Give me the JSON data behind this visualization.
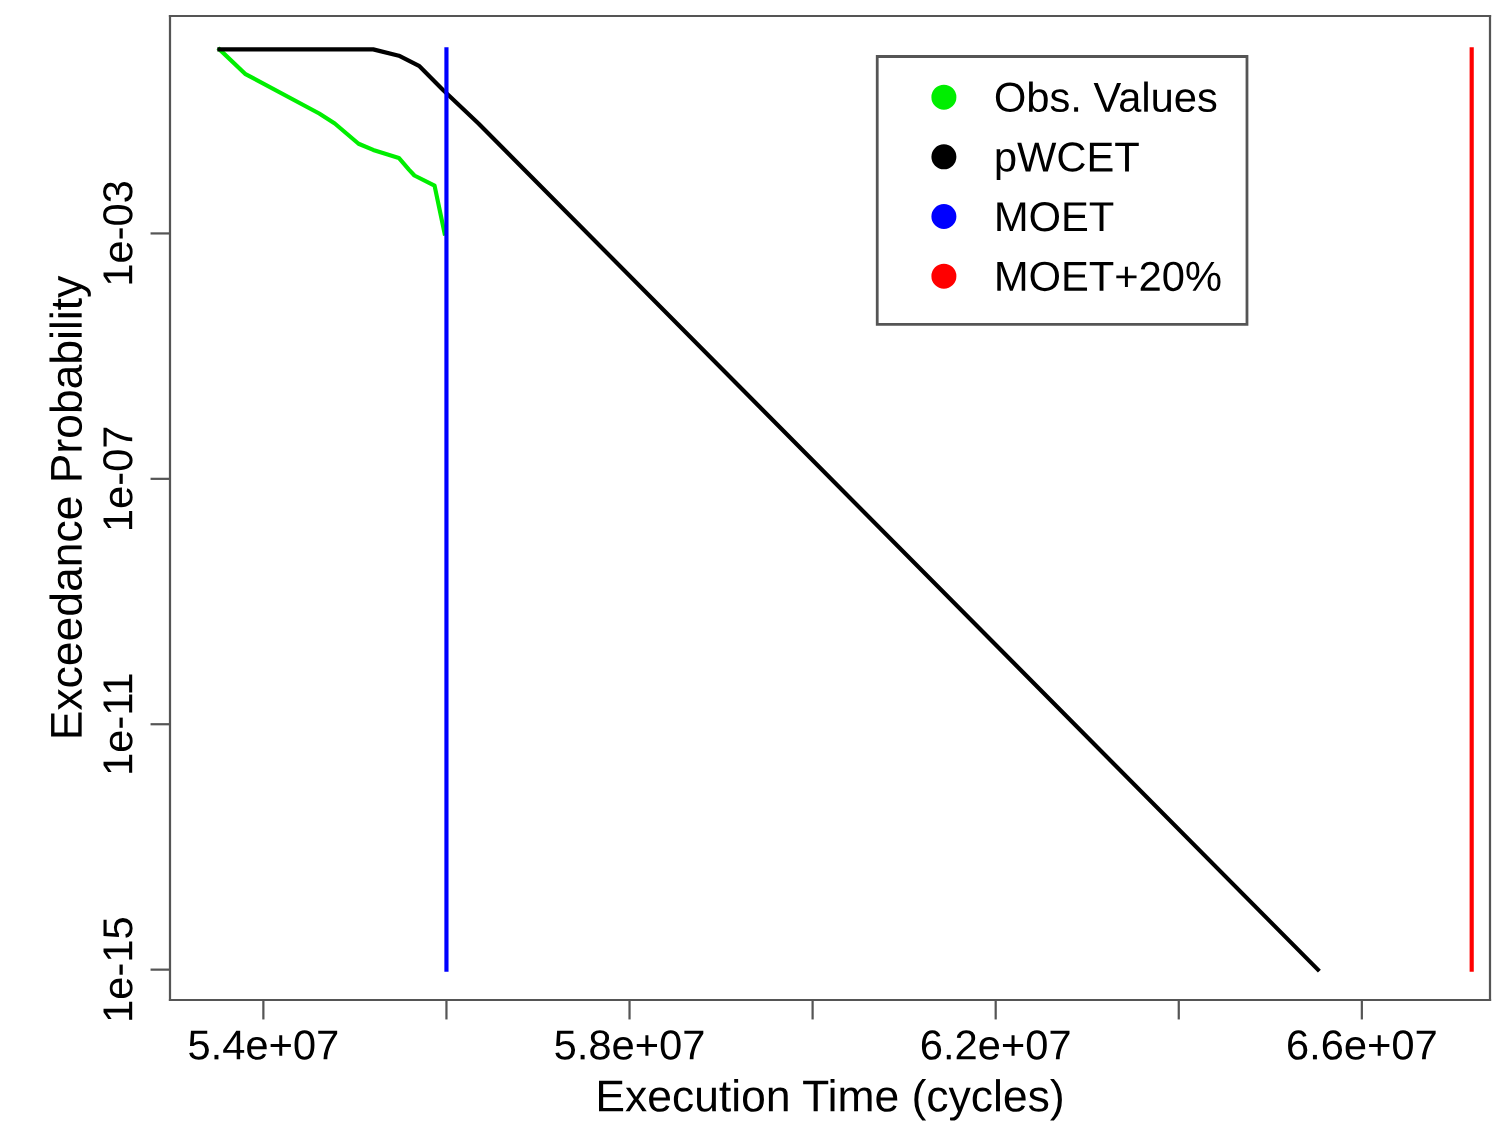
{
  "chart_data": {
    "type": "line",
    "xlabel": "Execution Time (cycles)",
    "ylabel": "Exceedance Probability",
    "log": "y",
    "grid": false,
    "legend": "top right",
    "marker": "none",
    "line_style": "solid",
    "xlim": [
      52980000.0,
      67400000.0
    ],
    "ylim": [
      3.2e-16,
      3.5
    ],
    "xticks": [
      {
        "value": 54000000.0,
        "label": "5.4e+07"
      },
      {
        "value": 56000000.0,
        "label": null
      },
      {
        "value": 58000000.0,
        "label": "5.8e+07"
      },
      {
        "value": 60000000.0,
        "label": null
      },
      {
        "value": 62000000.0,
        "label": "6.2e+07"
      },
      {
        "value": 64000000.0,
        "label": null
      },
      {
        "value": 66000000.0,
        "label": "6.6e+07"
      }
    ],
    "yticks": [
      {
        "value": 0.001,
        "label": "1e-03"
      },
      {
        "value": 1e-07,
        "label": "1e-07"
      },
      {
        "value": 1e-11,
        "label": "1e-11"
      },
      {
        "value": 1e-15,
        "label": "1e-15"
      }
    ],
    "series": [
      {
        "name": "Obs. Values",
        "color": "#00ee00",
        "x": [
          53520000.0,
          53800000.0,
          54610000.0,
          54780000.0,
          55040000.0,
          55200000.0,
          55480000.0,
          55590000.0,
          55650000.0,
          55870000.0,
          55980000.0
        ],
        "values": [
          1,
          0.4,
          0.09,
          0.062,
          0.029,
          0.023,
          0.017,
          0.011,
          0.0088,
          0.006,
          0.001
        ]
      },
      {
        "name": "pWCET",
        "color": "#000000",
        "x": [
          53520000.0,
          55200000.0,
          55480000.0,
          55700000.0,
          55960000.0,
          56350000.0,
          65520000.0
        ],
        "values": [
          1,
          1,
          0.79,
          0.54,
          0.22,
          0.062,
          1e-15
        ]
      },
      {
        "name": "MOET",
        "color": "#0000ff",
        "x": [
          56000000.0,
          56000000.0
        ],
        "values": [
          1,
          1e-15
        ]
      },
      {
        "name": "MOET+20%",
        "color": "#ff0000",
        "x": [
          67200000.0,
          67200000.0
        ],
        "values": [
          1,
          1e-15
        ]
      }
    ]
  }
}
